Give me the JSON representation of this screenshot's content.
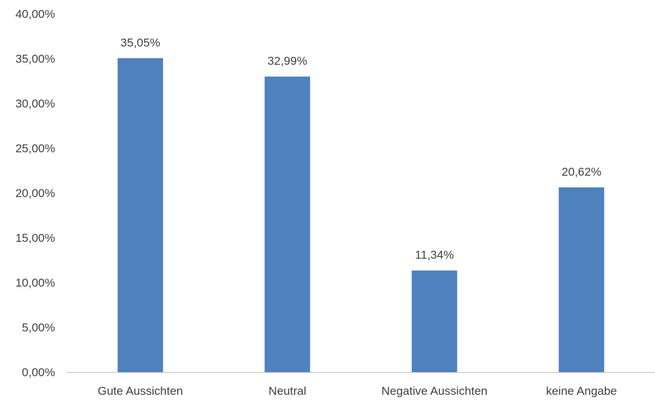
{
  "chart_data": {
    "type": "bar",
    "title": "",
    "xlabel": "",
    "ylabel": "",
    "categories": [
      "Gute Aussichten",
      "Neutral",
      "Negative Aussichten",
      "keine Angabe"
    ],
    "values": [
      35.05,
      32.99,
      11.34,
      20.62
    ],
    "value_labels": [
      "35,05%",
      "32,99%",
      "11,34%",
      "20,62%"
    ],
    "ylim": [
      0,
      40
    ],
    "yticks": [
      0,
      5,
      10,
      15,
      20,
      25,
      30,
      35,
      40
    ],
    "ytick_labels": [
      "0,00%",
      "5,00%",
      "10,00%",
      "15,00%",
      "20,00%",
      "25,00%",
      "30,00%",
      "35,00%",
      "40,00%"
    ],
    "grid": false,
    "legend": "none",
    "bar_color": "#4f81bd",
    "axis_color": "#bfbfbf",
    "text_color": "#404040"
  }
}
